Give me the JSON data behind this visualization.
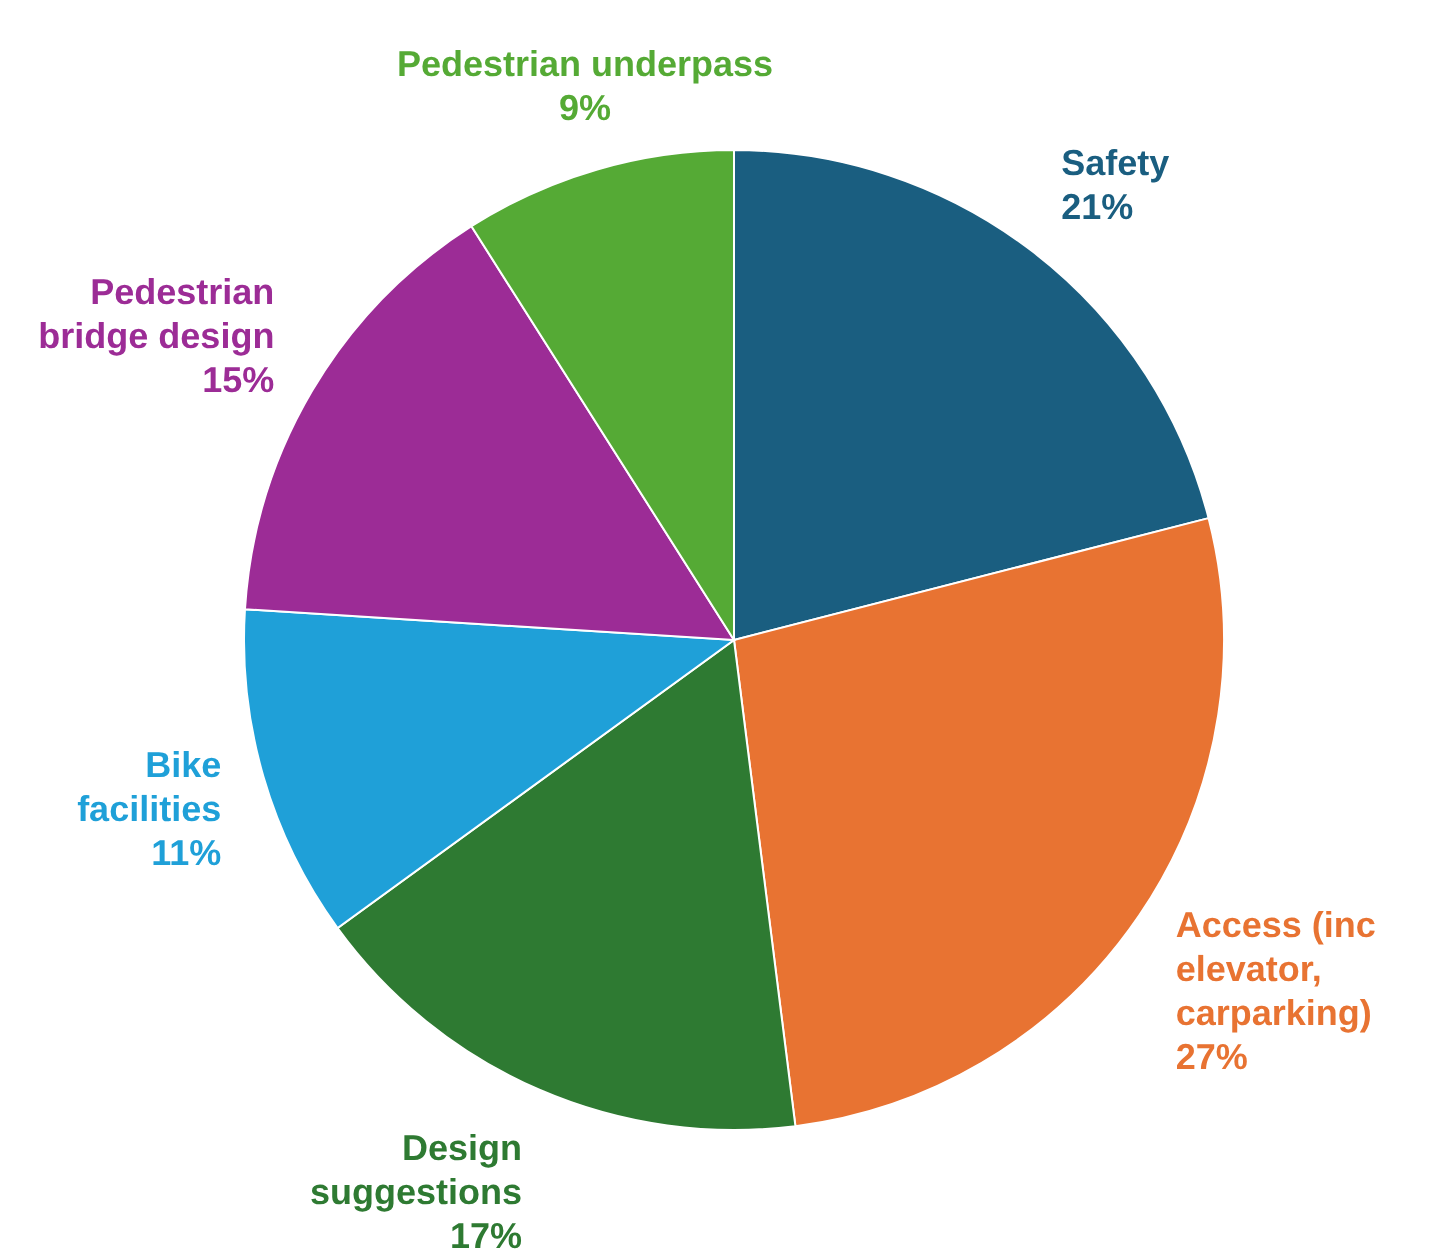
{
  "chart_data": {
    "type": "pie",
    "categories": [
      "Safety",
      "Access (inc elevator, carparking)",
      "Design suggestions",
      "Bike facilities",
      "Pedestrian bridge design",
      "Pedestrian underpass"
    ],
    "values": [
      21,
      27,
      17,
      11,
      15,
      9
    ],
    "value_labels": [
      "21%",
      "27%",
      "17%",
      "11%",
      "15%",
      "9%"
    ],
    "colors": [
      "#1a5e80",
      "#e87332",
      "#2e7a32",
      "#1fa0d8",
      "#9c2c96",
      "#55aa35"
    ],
    "legend": false
  }
}
